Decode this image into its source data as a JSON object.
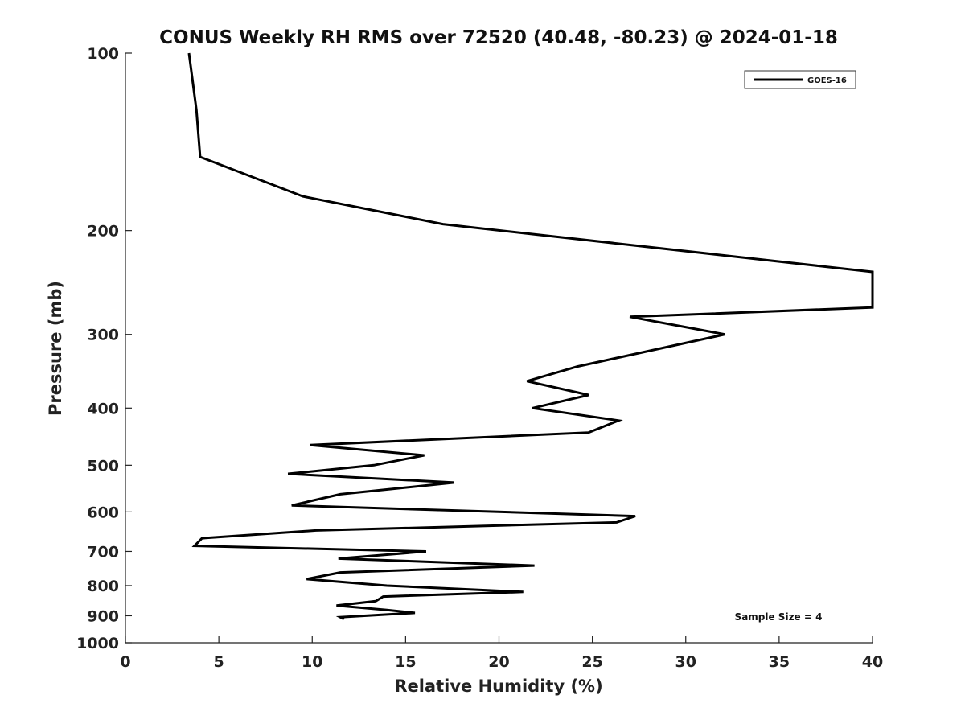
{
  "chart_data": {
    "type": "line",
    "title": "CONUS Weekly RH RMS over 72520 (40.48, -80.23) @ 2024-01-18",
    "xlabel": "Relative Humidity (%)",
    "ylabel": "Pressure (mb)",
    "xlim": [
      0,
      40
    ],
    "ylim": [
      100,
      1000
    ],
    "yscale": "log",
    "y_reversed": true,
    "xticks": [
      0,
      5,
      10,
      15,
      20,
      25,
      30,
      35,
      40
    ],
    "yticks": [
      100,
      200,
      300,
      400,
      500,
      600,
      700,
      800,
      900,
      1000
    ],
    "grid": false,
    "legend_position": "top-right",
    "annotation": "Sample Size = 4",
    "series": [
      {
        "name": "GOES-16",
        "color": "#000000",
        "points": [
          [
            3.4,
            100
          ],
          [
            3.8,
            125
          ],
          [
            4.0,
            150
          ],
          [
            9.5,
            175
          ],
          [
            17.0,
            195
          ],
          [
            40.0,
            235
          ],
          [
            40.0,
            270
          ],
          [
            27.0,
            280
          ],
          [
            32.1,
            300
          ],
          [
            24.2,
            340
          ],
          [
            21.5,
            360
          ],
          [
            24.8,
            380
          ],
          [
            21.8,
            400
          ],
          [
            26.4,
            420
          ],
          [
            24.8,
            440
          ],
          [
            9.9,
            462
          ],
          [
            16.0,
            481
          ],
          [
            13.3,
            500
          ],
          [
            8.7,
            517
          ],
          [
            17.6,
            535
          ],
          [
            11.5,
            560
          ],
          [
            8.9,
            585
          ],
          [
            27.3,
            610
          ],
          [
            26.3,
            625
          ],
          [
            10.2,
            645
          ],
          [
            4.1,
            665
          ],
          [
            3.7,
            685
          ],
          [
            16.1,
            700
          ],
          [
            11.4,
            720
          ],
          [
            21.9,
            740
          ],
          [
            11.5,
            760
          ],
          [
            9.7,
            780
          ],
          [
            14.0,
            800
          ],
          [
            21.3,
            820
          ],
          [
            13.8,
            835
          ],
          [
            13.4,
            850
          ],
          [
            11.3,
            865
          ],
          [
            14.0,
            880
          ],
          [
            15.5,
            890
          ],
          [
            11.5,
            905
          ],
          [
            11.7,
            912
          ]
        ]
      }
    ]
  }
}
